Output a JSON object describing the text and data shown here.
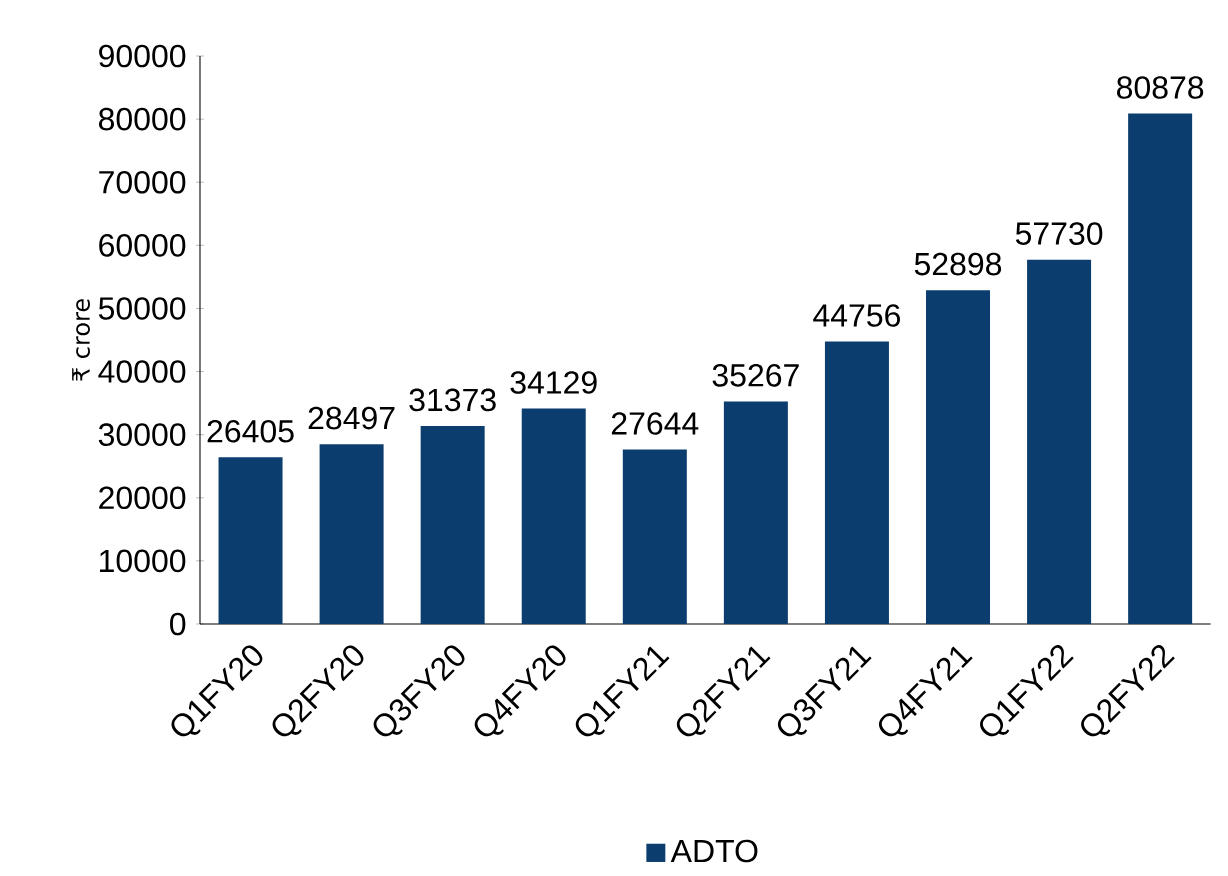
{
  "chart_data": {
    "type": "bar",
    "ylabel": "₹ crore",
    "categories": [
      "Q1FY20",
      "Q2FY20",
      "Q3FY20",
      "Q4FY20",
      "Q1FY21",
      "Q2FY21",
      "Q3FY21",
      "Q4FY21",
      "Q1FY22",
      "Q2FY22"
    ],
    "series": [
      {
        "name": "ADTO",
        "color": "#0b3d6e",
        "values": [
          26405,
          28497,
          31373,
          34129,
          27644,
          35267,
          44756,
          52898,
          57730,
          80878
        ]
      }
    ],
    "ylim": [
      0,
      90000
    ],
    "yticks": [
      0,
      10000,
      20000,
      30000,
      40000,
      50000,
      60000,
      70000,
      80000,
      90000
    ],
    "data_labels": true,
    "grid": false,
    "legend": "bottom"
  }
}
